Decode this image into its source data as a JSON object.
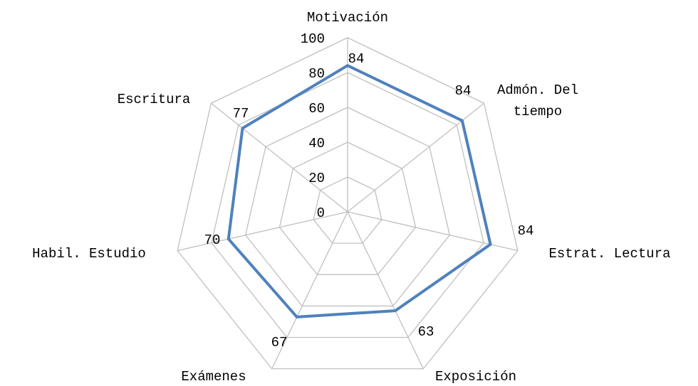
{
  "chart_data": {
    "type": "radar",
    "categories": [
      "Motivación",
      "Admón. Del tiempo",
      "Estrat. Lectura",
      "Exposición",
      "Exámenes",
      "Habil. Estudio",
      "Escritura"
    ],
    "series": [
      {
        "color": "#4f81bd",
        "values": [
          84,
          84,
          84,
          63,
          67,
          70,
          77
        ]
      }
    ],
    "ylim": [
      0,
      100
    ],
    "yticks": [
      0,
      20,
      40,
      60,
      80,
      100
    ],
    "grid": true
  }
}
